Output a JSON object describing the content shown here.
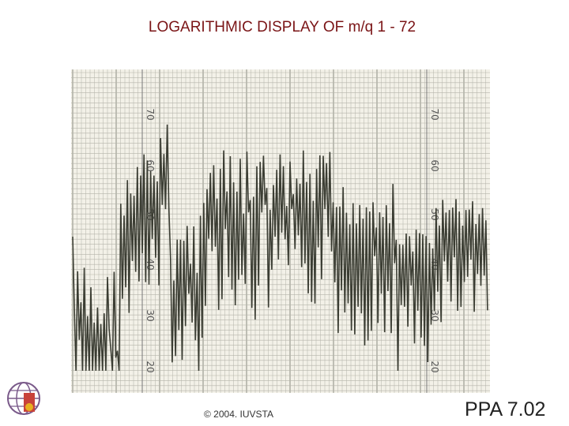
{
  "slide": {
    "title": "LOGARITHMIC DISPLAY OF m/q 1 - 72",
    "footer": "© 2004. IUVSTA",
    "number": "PPA 7.02"
  },
  "scan": {
    "scale_labels": [
      70,
      60,
      50,
      40,
      30,
      20
    ]
  }
}
